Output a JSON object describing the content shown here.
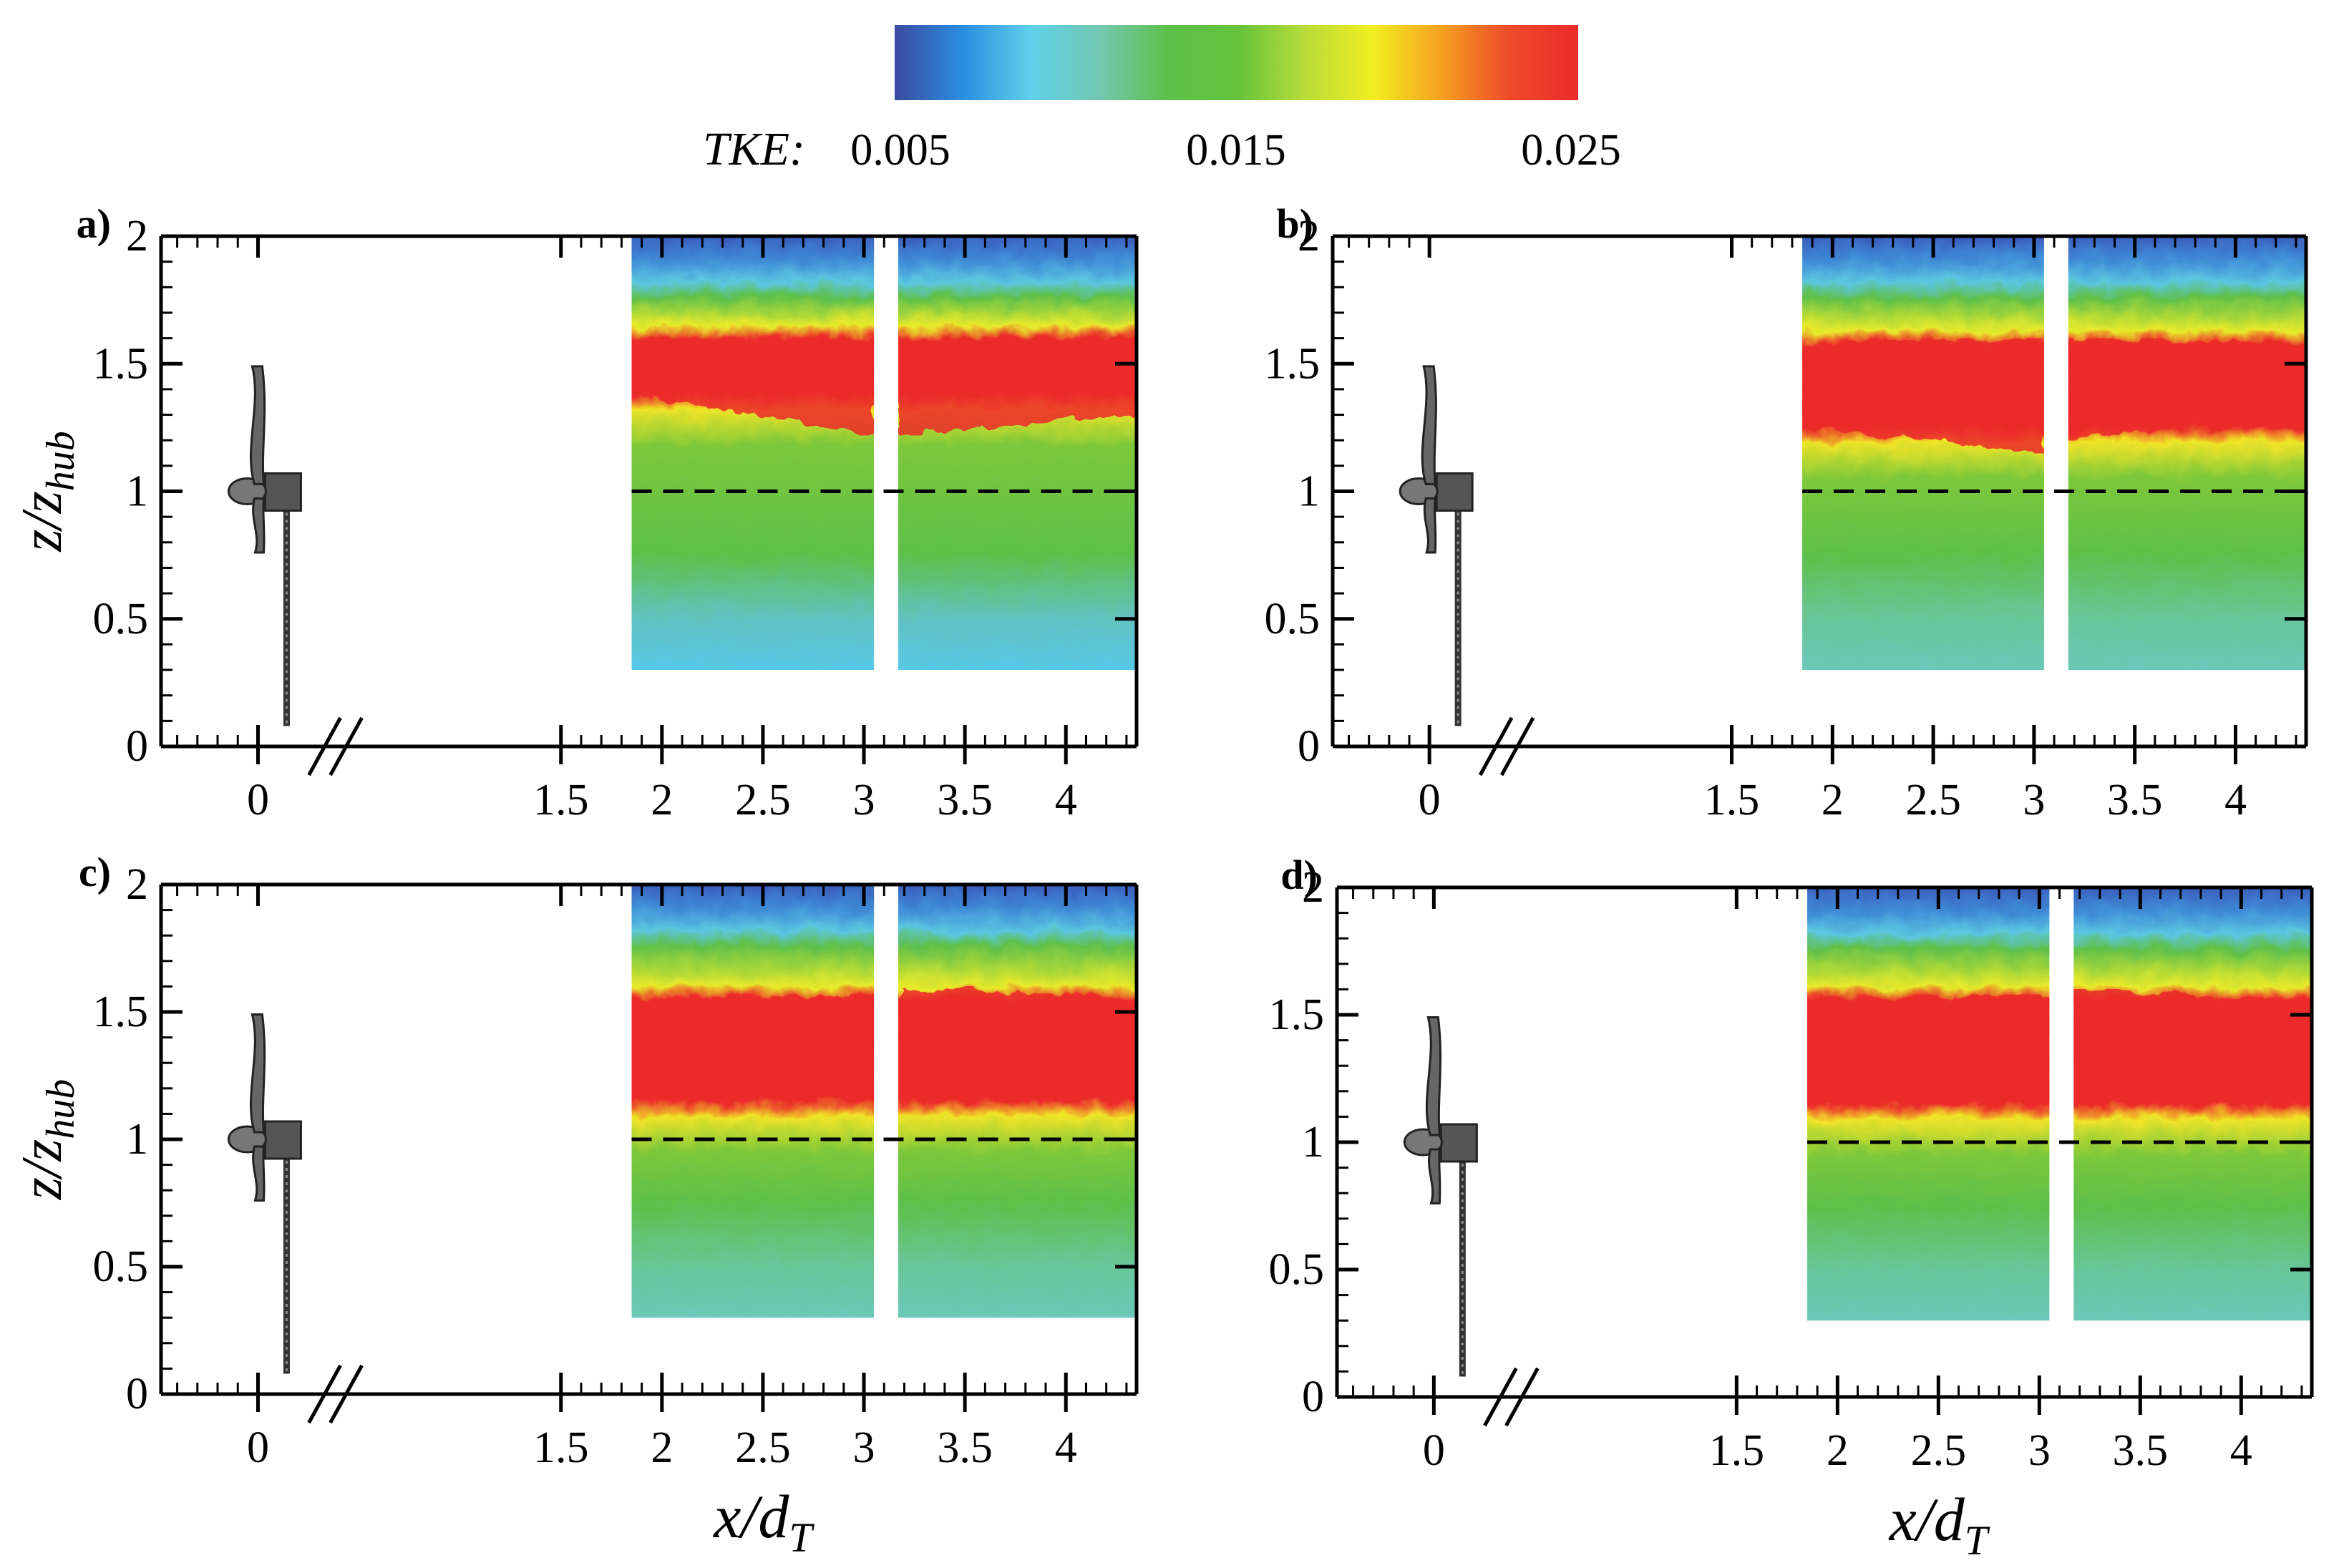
{
  "colorbar": {
    "label": "TKE:",
    "ticks": [
      "0.005",
      "0.015",
      "0.025"
    ],
    "range": [
      0.005,
      0.025
    ],
    "stops": [
      "#3b4aa0",
      "#2a8ee0",
      "#5fd0ea",
      "#72c8b0",
      "#5ec04a",
      "#64c23c",
      "#b8dc3a",
      "#f2ee20",
      "#f6a020",
      "#ee4a2a",
      "#ec2a2a"
    ]
  },
  "chart_data": [
    {
      "type": "heatmap",
      "panel": "a)",
      "ylabel": "z/z_hub",
      "xlabel": "",
      "yticks": [
        "0",
        "0.5",
        "1",
        "1.5",
        "2"
      ],
      "xticks": [
        "0",
        "1.5",
        "2",
        "2.5",
        "3",
        "3.5",
        "4"
      ],
      "ylim": [
        0,
        2
      ],
      "reference_line_y": 1,
      "windows": [
        [
          1.85,
          3.05
        ],
        [
          3.17,
          4.35
        ]
      ],
      "field_zmin": 0.3,
      "red_band": [
        {
          "x": 1.85,
          "z0": 1.38,
          "z1": 1.6
        },
        {
          "x": 3.05,
          "z0": 1.22,
          "z1": 1.6
        },
        {
          "x": 3.17,
          "z0": 1.22,
          "z1": 1.6
        },
        {
          "x": 4.35,
          "z0": 1.3,
          "z1": 1.58
        }
      ],
      "low_level": "lightblue"
    },
    {
      "type": "heatmap",
      "panel": "b)",
      "ylabel": "",
      "xlabel": "",
      "yticks": [
        "0",
        "0.5",
        "1",
        "1.5",
        "2"
      ],
      "xticks": [
        "0",
        "1.5",
        "2",
        "2.5",
        "3",
        "3.5",
        "4"
      ],
      "ylim": [
        0,
        2
      ],
      "reference_line_y": 1,
      "windows": [
        [
          1.85,
          3.05
        ],
        [
          3.17,
          4.35
        ]
      ],
      "field_zmin": 0.3,
      "red_band": [
        {
          "x": 1.85,
          "z0": 1.25,
          "z1": 1.58
        },
        {
          "x": 3.05,
          "z0": 1.15,
          "z1": 1.6
        },
        {
          "x": 3.17,
          "z0": 1.2,
          "z1": 1.6
        },
        {
          "x": 4.35,
          "z0": 1.3,
          "z1": 1.58
        }
      ],
      "low_level": "teal"
    },
    {
      "type": "heatmap",
      "panel": "c)",
      "ylabel": "z/z_hub",
      "xlabel": "x/d_T",
      "yticks": [
        "0",
        "0.5",
        "1",
        "1.5",
        "2"
      ],
      "xticks": [
        "0",
        "1.5",
        "2",
        "2.5",
        "3",
        "3.5",
        "4"
      ],
      "ylim": [
        0,
        2
      ],
      "reference_line_y": 1,
      "windows": [
        [
          1.85,
          3.05
        ],
        [
          3.17,
          4.35
        ]
      ],
      "field_zmin": 0.3,
      "red_band": [
        {
          "x": 1.85,
          "z0": 1.15,
          "z1": 1.55
        },
        {
          "x": 3.05,
          "z0": 1.15,
          "z1": 1.57
        },
        {
          "x": 3.17,
          "z0": 1.25,
          "z1": 1.6
        },
        {
          "x": 4.35,
          "z0": 1.35,
          "z1": 1.55
        }
      ],
      "low_level": "teal"
    },
    {
      "type": "heatmap",
      "panel": "d)",
      "ylabel": "",
      "xlabel": "x/d_T",
      "yticks": [
        "0",
        "0.5",
        "1",
        "1.5",
        "2"
      ],
      "xticks": [
        "0",
        "1.5",
        "2",
        "2.5",
        "3",
        "3.5",
        "4"
      ],
      "ylim": [
        0,
        2
      ],
      "reference_line_y": 1,
      "windows": [
        [
          1.85,
          3.05
        ],
        [
          3.17,
          4.35
        ]
      ],
      "field_zmin": 0.3,
      "red_band": [
        {
          "x": 1.85,
          "z0": 1.15,
          "z1": 1.56
        },
        {
          "x": 3.05,
          "z0": 1.15,
          "z1": 1.58
        },
        {
          "x": 3.17,
          "z0": 1.22,
          "z1": 1.6
        },
        {
          "x": 4.35,
          "z0": 1.35,
          "z1": 1.55
        }
      ],
      "low_level": "teal"
    }
  ]
}
